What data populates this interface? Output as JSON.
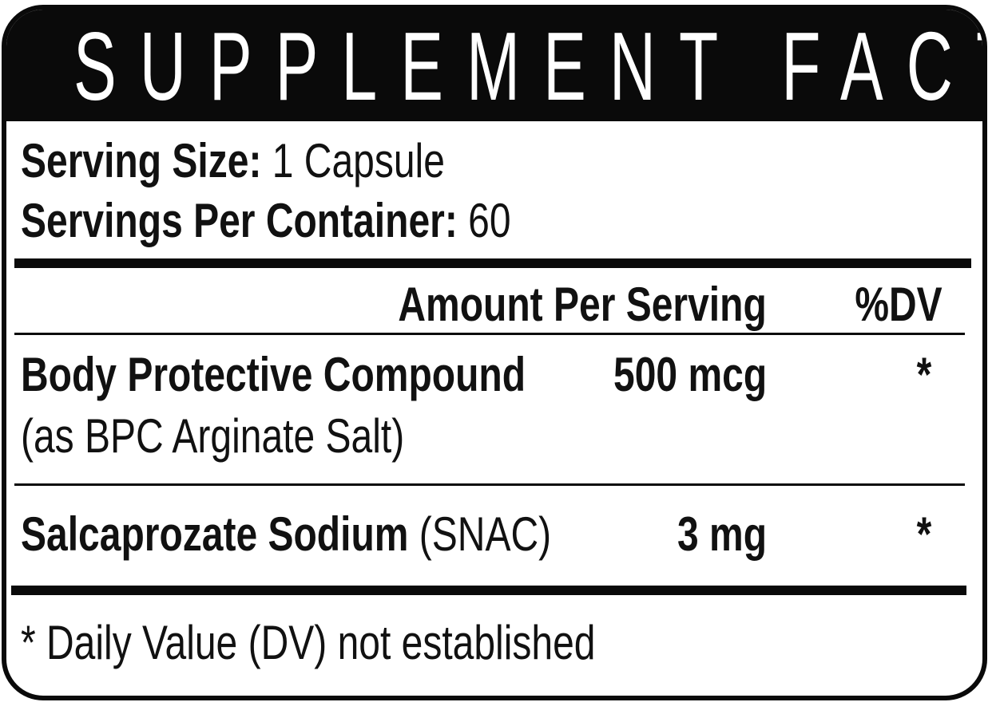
{
  "title": "SUPPLEMENT FACTS",
  "serving_size": {
    "label": "Serving Size:",
    "value": "1 Capsule"
  },
  "servings_per_container": {
    "label": "Servings Per Container:",
    "value": "60"
  },
  "columns": {
    "amount": "Amount Per Serving",
    "dv": "%DV"
  },
  "ingredients": [
    {
      "name": "Body Protective Compound",
      "detail": "(as BPC Arginate Salt)",
      "amount": "500 mcg",
      "dv": "*"
    },
    {
      "name": "Salcaprozate Sodium",
      "detail": "(SNAC)",
      "amount": "3 mg",
      "dv": "*"
    }
  ],
  "footnote": "* Daily Value (DV) not established"
}
